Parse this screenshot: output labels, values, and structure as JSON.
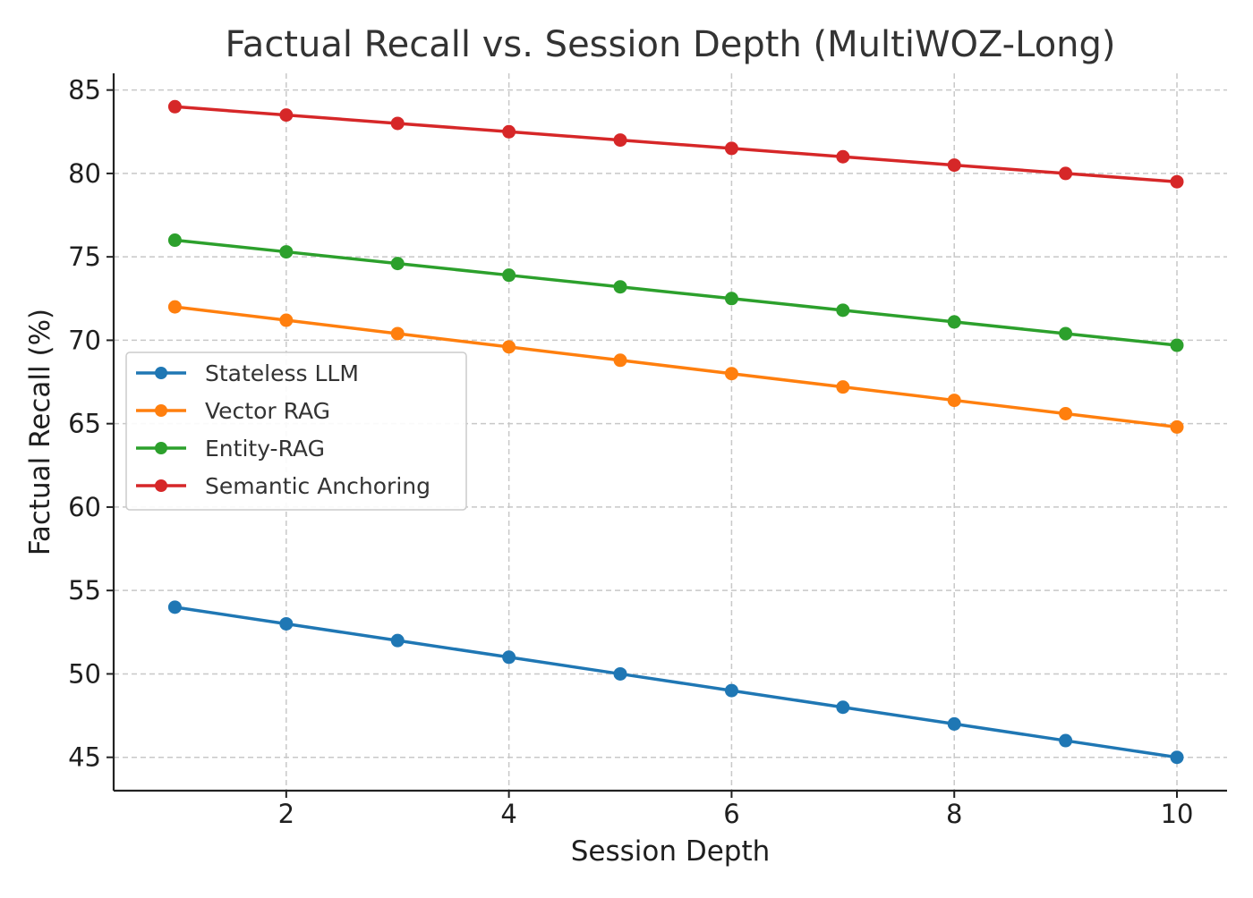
{
  "chart_data": {
    "type": "line",
    "title": "Factual Recall vs. Session Depth (MultiWOZ-Long)",
    "xlabel": "Session Depth",
    "ylabel": "Factual Recall (%)",
    "x": [
      1,
      2,
      3,
      4,
      5,
      6,
      7,
      8,
      9,
      10
    ],
    "xlim": [
      0.45,
      10.45
    ],
    "ylim": [
      43,
      86
    ],
    "xticks": [
      2,
      4,
      6,
      8,
      10
    ],
    "xtick_labels": [
      "2",
      "4",
      "6",
      "8",
      "10"
    ],
    "yticks": [
      45,
      50,
      55,
      60,
      65,
      70,
      75,
      80,
      85
    ],
    "ytick_labels": [
      "45",
      "50",
      "55",
      "60",
      "65",
      "70",
      "75",
      "80",
      "85"
    ],
    "grid": true,
    "legend_position": "center-left",
    "series": [
      {
        "name": "Stateless LLM",
        "color": "#1f77b4",
        "values": [
          54,
          53,
          52,
          51,
          50,
          49,
          48,
          47,
          46,
          45
        ]
      },
      {
        "name": "Vector RAG",
        "color": "#ff7f0e",
        "values": [
          72,
          71.2,
          70.4,
          69.6,
          68.8,
          68,
          67.2,
          66.4,
          65.6,
          64.8
        ]
      },
      {
        "name": "Entity-RAG",
        "color": "#2ca02c",
        "values": [
          76,
          75.3,
          74.6,
          73.9,
          73.2,
          72.5,
          71.8,
          71.1,
          70.4,
          69.7
        ]
      },
      {
        "name": "Semantic Anchoring",
        "color": "#d62728",
        "values": [
          84,
          83.5,
          83,
          82.5,
          82,
          81.5,
          81,
          80.5,
          80,
          79.5
        ]
      }
    ]
  }
}
